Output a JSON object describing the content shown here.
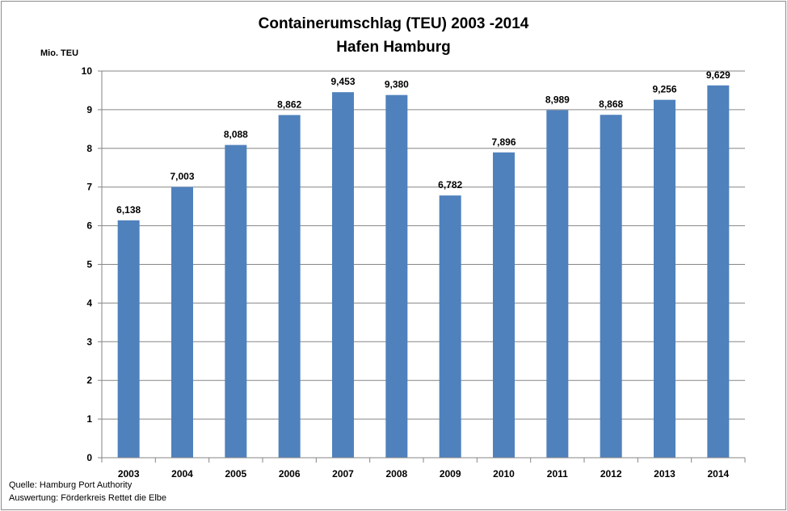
{
  "chart_data": {
    "type": "bar",
    "title": "Containerumschlag (TEU) 2003 -2014",
    "subtitle": "Hafen Hamburg",
    "ylabel": "Mio. TEU",
    "xlabel": "",
    "ylim": [
      0,
      10
    ],
    "yticks": [
      "0",
      "1",
      "2",
      "3",
      "4",
      "5",
      "6",
      "7",
      "8",
      "9",
      "10"
    ],
    "categories": [
      "2003",
      "2004",
      "2005",
      "2006",
      "2007",
      "2008",
      "2009",
      "2010",
      "2011",
      "2012",
      "2013",
      "2014"
    ],
    "values": [
      6.138,
      7.003,
      8.088,
      8.862,
      9.453,
      9.38,
      6.782,
      7.896,
      8.989,
      8.868,
      9.256,
      9.629
    ],
    "data_labels": [
      "6,138",
      "7,003",
      "8,088",
      "8,862",
      "9,453",
      "9,380",
      "6,782",
      "7,896",
      "8,989",
      "8,868",
      "9,256",
      "9,629"
    ],
    "grid": true,
    "legend": "none",
    "bar_color": "#4f81bd",
    "grid_color": "#868686"
  },
  "source": {
    "line1": "Quelle: Hamburg Port Authority",
    "line2": "Auswertung: Förderkreis Rettet die Elbe"
  }
}
